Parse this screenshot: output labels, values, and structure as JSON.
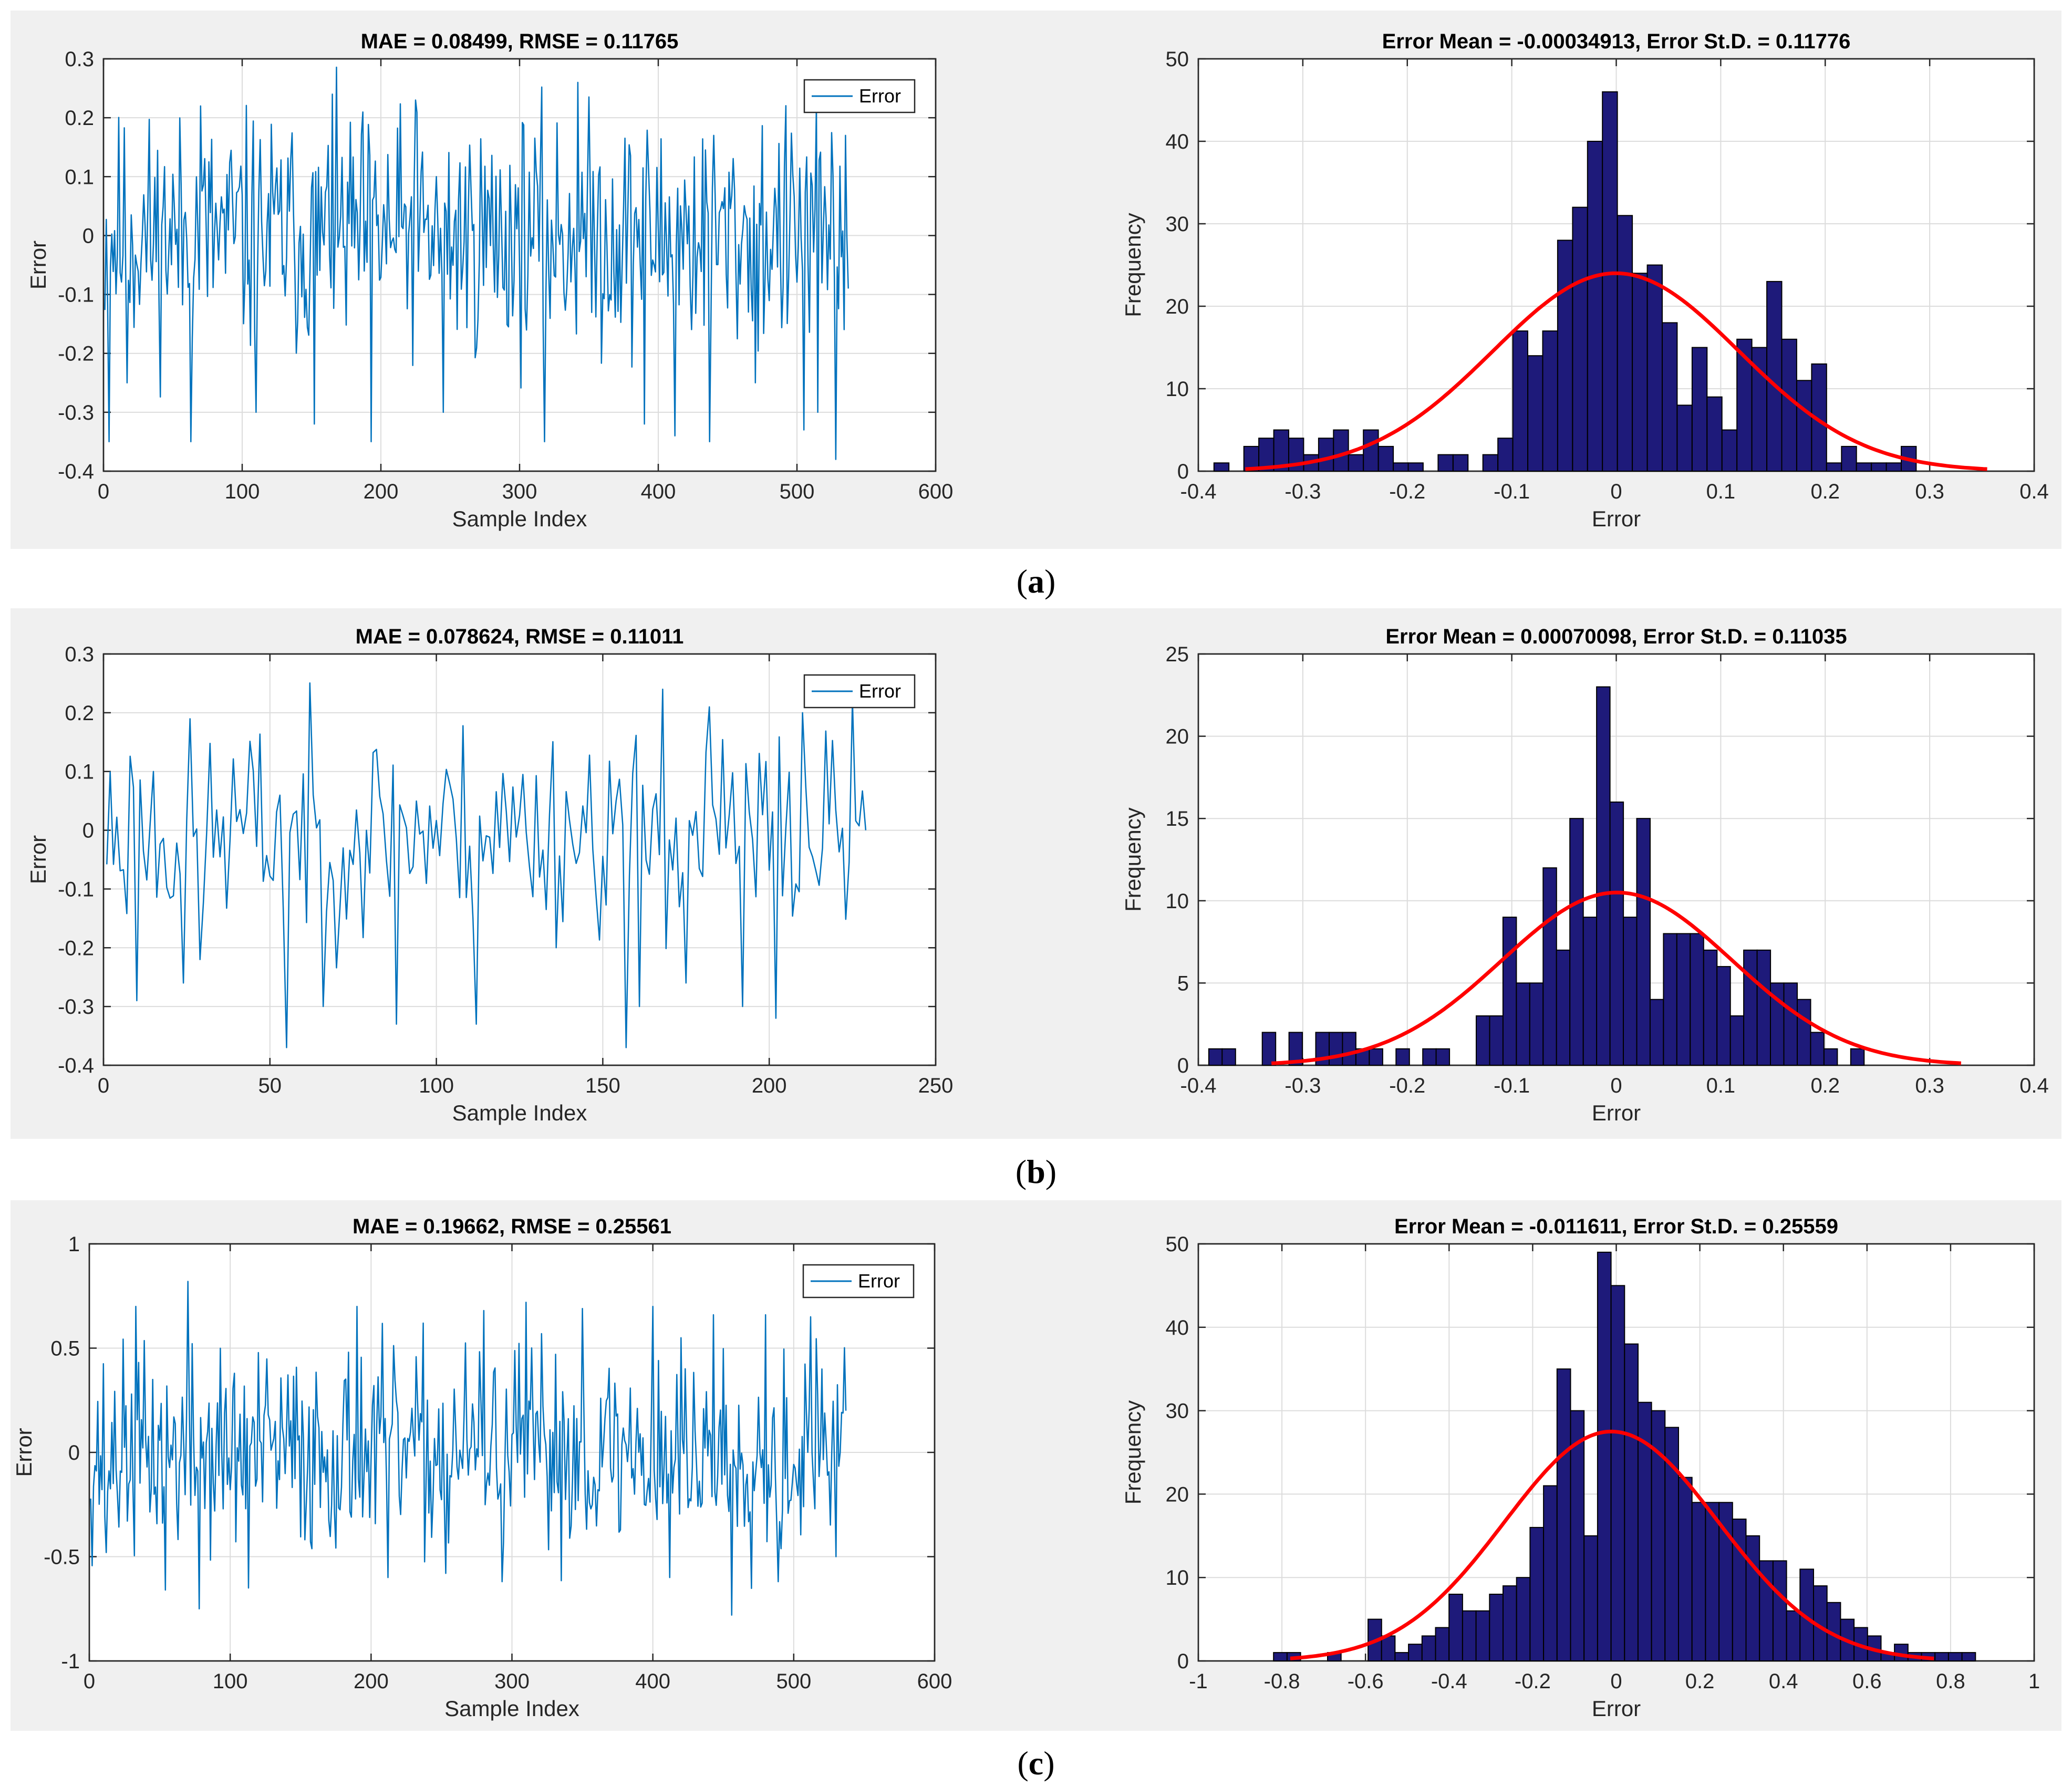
{
  "colors": {
    "line": "#0072bd",
    "bar": "#1e1a7a",
    "fit": "#ff0000",
    "panel": "#f0f0f0"
  },
  "rows": [
    {
      "caption_open": "(",
      "caption_letter": "a",
      "caption_close": ")",
      "line_chart": {
        "type": "line",
        "title": "MAE = 0.08499, RMSE = 0.11765",
        "xlabel": "Sample Index",
        "ylabel": "Error",
        "xlim": [
          0,
          600
        ],
        "ylim": [
          -0.4,
          0.3
        ],
        "xticks": [
          0,
          100,
          200,
          300,
          400,
          500,
          600
        ],
        "yticks": [
          -0.4,
          -0.3,
          -0.2,
          -0.1,
          0,
          0.1,
          0.2,
          0.3
        ],
        "legend": "Error",
        "legend_loc": "top-right",
        "n": 537,
        "amp": 0.1,
        "seed": 11,
        "spikes": [
          [
            4,
            -0.35
          ],
          [
            17,
            -0.25
          ],
          [
            63,
            -0.35
          ],
          [
            70,
            0.22
          ],
          [
            110,
            -0.3
          ],
          [
            152,
            -0.32
          ],
          [
            165,
            0.24
          ],
          [
            193,
            -0.35
          ],
          [
            225,
            0.23
          ],
          [
            245,
            -0.3
          ],
          [
            318,
            -0.35
          ],
          [
            342,
            0.26
          ],
          [
            390,
            -0.32
          ],
          [
            412,
            -0.34
          ],
          [
            437,
            -0.35
          ],
          [
            470,
            -0.25
          ],
          [
            505,
            -0.33
          ],
          [
            515,
            -0.3
          ],
          [
            528,
            -0.38
          ],
          [
            535,
            0.17
          ],
          [
            537,
            -0.09
          ]
        ]
      },
      "hist_chart": {
        "type": "bar",
        "title": "Error Mean = -0.00034913, Error St.D. = 0.11776",
        "xlabel": "Error",
        "ylabel": "Frequency",
        "xlim": [
          -0.4,
          0.4
        ],
        "ylim": [
          0,
          50
        ],
        "xticks": [
          -0.4,
          -0.3,
          -0.2,
          -0.1,
          0,
          0.1,
          0.2,
          0.3,
          0.4
        ],
        "yticks": [
          0,
          10,
          20,
          30,
          40,
          50
        ],
        "bin_start": -0.385,
        "bin_width": 0.0143,
        "counts": [
          1,
          0,
          3,
          4,
          5,
          4,
          2,
          4,
          5,
          2,
          5,
          3,
          1,
          1,
          0,
          2,
          2,
          0,
          2,
          4,
          17,
          14,
          17,
          28,
          32,
          40,
          46,
          31,
          24,
          25,
          18,
          8,
          15,
          9,
          5,
          16,
          15,
          23,
          16,
          11,
          13,
          1,
          3,
          1,
          1,
          1,
          3
        ],
        "fit": {
          "mean": -0.00034913,
          "std": 0.11776,
          "peak": 24,
          "range": [
            -0.355,
            0.355
          ]
        }
      }
    },
    {
      "caption_open": "(",
      "caption_letter": "b",
      "caption_close": ")",
      "line_chart": {
        "type": "line",
        "title": "MAE = 0.078624, RMSE = 0.11011",
        "xlabel": "Sample Index",
        "ylabel": "Error",
        "xlim": [
          0,
          250
        ],
        "ylim": [
          -0.4,
          0.3
        ],
        "xticks": [
          0,
          50,
          100,
          150,
          200,
          250
        ],
        "yticks": [
          -0.4,
          -0.3,
          -0.2,
          -0.1,
          0,
          0.1,
          0.2,
          0.3
        ],
        "legend": "Error",
        "legend_loc": "top-right",
        "n": 229,
        "amp": 0.09,
        "seed": 23,
        "spikes": [
          [
            10,
            -0.29
          ],
          [
            24,
            -0.26
          ],
          [
            29,
            -0.22
          ],
          [
            55,
            -0.37
          ],
          [
            66,
            -0.3
          ],
          [
            88,
            -0.33
          ],
          [
            112,
            -0.33
          ],
          [
            157,
            -0.37
          ],
          [
            161,
            -0.3
          ],
          [
            168,
            0.24
          ],
          [
            175,
            -0.26
          ],
          [
            182,
            0.21
          ],
          [
            192,
            -0.3
          ],
          [
            202,
            -0.32
          ],
          [
            210,
            0.2
          ],
          [
            229,
            0
          ]
        ]
      },
      "hist_chart": {
        "type": "bar",
        "title": "Error Mean = 0.00070098, Error St.D. = 0.11035",
        "xlabel": "Error",
        "ylabel": "Frequency",
        "xlim": [
          -0.4,
          0.4
        ],
        "ylim": [
          0,
          25
        ],
        "xticks": [
          -0.4,
          -0.3,
          -0.2,
          -0.1,
          0,
          0.1,
          0.2,
          0.3,
          0.4
        ],
        "yticks": [
          0,
          5,
          10,
          15,
          20,
          25
        ],
        "bin_start": -0.39,
        "bin_width": 0.0128,
        "counts": [
          1,
          1,
          0,
          0,
          2,
          0,
          2,
          0,
          2,
          2,
          2,
          1,
          1,
          0,
          1,
          0,
          1,
          1,
          0,
          0,
          3,
          3,
          9,
          5,
          5,
          12,
          7,
          15,
          9,
          23,
          16,
          9,
          15,
          4,
          8,
          8,
          8,
          7,
          6,
          3,
          7,
          7,
          5,
          5,
          4,
          2,
          1,
          0,
          1,
          0
        ],
        "fit": {
          "mean": 0.00070098,
          "std": 0.11035,
          "peak": 10.5,
          "range": [
            -0.33,
            0.33
          ]
        }
      }
    },
    {
      "caption_open": "(",
      "caption_letter": "c",
      "caption_close": ")",
      "line_chart": {
        "type": "line",
        "title": "MAE = 0.19662, RMSE = 0.25561",
        "xlabel": "Sample Index",
        "ylabel": "Error",
        "xlim": [
          0,
          600
        ],
        "ylim": [
          -1,
          1
        ],
        "xticks": [
          0,
          100,
          200,
          300,
          400,
          500,
          600
        ],
        "yticks": [
          -1,
          -0.5,
          0,
          0.5,
          1
        ],
        "legend": "Error",
        "legend_loc": "top-right",
        "n": 537,
        "amp": 0.24,
        "seed": 37,
        "spikes": [
          [
            12,
            -0.48
          ],
          [
            33,
            0.7
          ],
          [
            54,
            -0.66
          ],
          [
            70,
            0.82
          ],
          [
            78,
            -0.75
          ],
          [
            113,
            -0.65
          ],
          [
            190,
            0.7
          ],
          [
            212,
            -0.6
          ],
          [
            253,
            -0.58
          ],
          [
            280,
            0.68
          ],
          [
            293,
            -0.62
          ],
          [
            310,
            0.72
          ],
          [
            350,
            0.69
          ],
          [
            400,
            0.7
          ],
          [
            412,
            -0.6
          ],
          [
            420,
            0.55
          ],
          [
            443,
            0.66
          ],
          [
            456,
            -0.78
          ],
          [
            480,
            0.66
          ],
          [
            489,
            -0.62
          ],
          [
            512,
            0.65
          ],
          [
            520,
            0.4
          ],
          [
            530,
            -0.5
          ],
          [
            537,
            0.2
          ]
        ]
      },
      "hist_chart": {
        "type": "bar",
        "title": "Error Mean = -0.011611, Error St.D. = 0.25559",
        "xlabel": "Error",
        "ylabel": "Frequency",
        "xlim": [
          -1,
          1
        ],
        "ylim": [
          0,
          50
        ],
        "xticks": [
          -1,
          -0.8,
          -0.6,
          -0.4,
          -0.2,
          0,
          0.2,
          0.4,
          0.6,
          0.8,
          1
        ],
        "yticks": [
          0,
          10,
          20,
          30,
          40,
          50
        ],
        "bin_start": -0.82,
        "bin_width": 0.0323,
        "counts": [
          1,
          1,
          0,
          0,
          1,
          0,
          0,
          5,
          3,
          1,
          2,
          3,
          4,
          8,
          6,
          6,
          8,
          9,
          10,
          16,
          21,
          35,
          30,
          15,
          49,
          45,
          38,
          31,
          30,
          28,
          22,
          19,
          19,
          19,
          17,
          15,
          12,
          12,
          6,
          11,
          9,
          7,
          5,
          4,
          3,
          1,
          2,
          1,
          1,
          1,
          1,
          1
        ],
        "fit": {
          "mean": -0.011611,
          "std": 0.25559,
          "peak": 27.5,
          "range": [
            -0.78,
            0.76
          ]
        }
      }
    }
  ]
}
